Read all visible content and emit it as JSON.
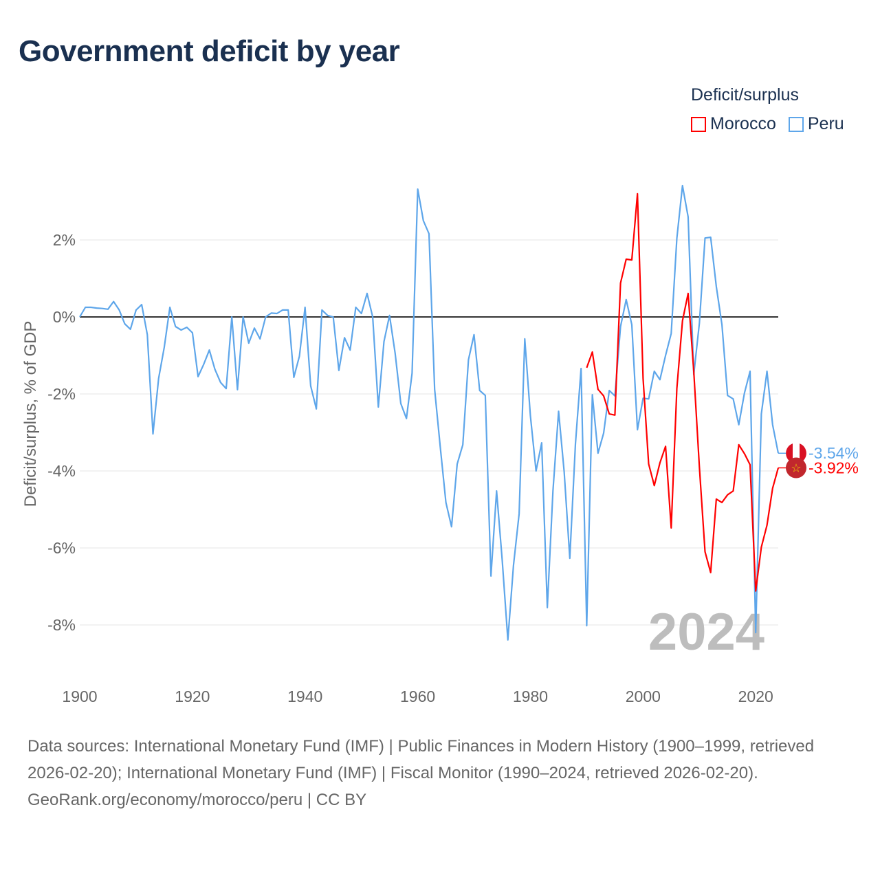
{
  "title": "Government deficit by year",
  "legend": {
    "title": "Deficit/surplus",
    "items": [
      "Morocco",
      "Peru"
    ]
  },
  "footer": {
    "sources": "Data sources: International Monetary Fund (IMF) | Public Finances in Modern History (1900–1999, retrieved 2026-02-20); International Monetary Fund (IMF) | Fiscal Monitor (1990–2024, retrieved 2026-02-20).",
    "credit": "GeoRank.org/economy/morocco/peru | CC BY"
  },
  "chart_data": {
    "type": "line",
    "title": "Government deficit by year",
    "xlabel": "",
    "ylabel": "Deficit/surplus, % of GDP",
    "xlim": [
      1900,
      2024
    ],
    "ylim": [
      -9.2,
      3.9
    ],
    "xticks": [
      1900,
      1920,
      1940,
      1960,
      1980,
      2000,
      2020
    ],
    "yticks": [
      2,
      0,
      -2,
      -4,
      -6,
      -8
    ],
    "ytick_labels": [
      "2%",
      "0%",
      "-2%",
      "-4%",
      "-6%",
      "-8%"
    ],
    "grid": true,
    "legend_position": "top-right",
    "year_annotation": "2024",
    "series": [
      {
        "name": "Peru",
        "color": "#5ea6ea",
        "end_label": "-3.54%",
        "x_start": 1900,
        "values": [
          0,
          0.25,
          0.25,
          0.23,
          0.22,
          0.2,
          0.4,
          0.18,
          -0.18,
          -0.32,
          0.18,
          0.32,
          -0.46,
          -3.04,
          -1.6,
          -0.79,
          0.25,
          -0.25,
          -0.34,
          -0.27,
          -0.41,
          -1.55,
          -1.23,
          -0.86,
          -1.36,
          -1.7,
          -1.86,
          0,
          -1.89,
          0,
          -0.68,
          -0.29,
          -0.57,
          0,
          0.1,
          0.09,
          0.18,
          0.18,
          -1.57,
          -1.02,
          0.25,
          -1.79,
          -2.39,
          0.18,
          0.04,
          0,
          -1.39,
          -0.54,
          -0.86,
          0.25,
          0.09,
          0.61,
          0,
          -2.34,
          -0.64,
          0.04,
          -0.95,
          -2.25,
          -2.64,
          -1.46,
          3.32,
          2.5,
          2.16,
          -1.88,
          -3.38,
          -4.82,
          -5.45,
          -3.82,
          -3.32,
          -1.11,
          -0.46,
          -1.91,
          -2.04,
          -6.73,
          -4.52,
          -6.32,
          -8.39,
          -6.45,
          -5.11,
          -0.57,
          -2.57,
          -4.0,
          -3.27,
          -7.55,
          -4.52,
          -2.45,
          -4.02,
          -6.27,
          -3.3,
          -1.34,
          -8.02,
          -2.02,
          -3.54,
          -3.02,
          -1.91,
          -2.05,
          -0.25,
          0.45,
          -0.2,
          -2.93,
          -2.11,
          -2.13,
          -1.41,
          -1.63,
          -1.0,
          -0.43,
          2.04,
          3.41,
          2.6,
          -1.5,
          -0.16,
          2.05,
          2.07,
          0.79,
          -0.2,
          -2.04,
          -2.13,
          -2.8,
          -1.98,
          -1.41,
          -8.2,
          -2.52,
          -1.41,
          -2.8,
          -3.54
        ]
      },
      {
        "name": "Morocco",
        "color": "#ff0000",
        "end_label": "-3.92%",
        "x_start": 1990,
        "values": [
          -1.32,
          -0.91,
          -1.88,
          -2.05,
          -2.52,
          -2.55,
          0.88,
          1.5,
          1.48,
          3.2,
          -1.6,
          -3.82,
          -4.38,
          -3.79,
          -3.36,
          -5.48,
          -1.86,
          -0.1,
          0.61,
          -1.41,
          -3.9,
          -6.1,
          -6.64,
          -4.73,
          -4.82,
          -4.62,
          -4.52,
          -3.32,
          -3.55,
          -3.84,
          -7.12,
          -5.98,
          -5.41,
          -4.45,
          -3.92
        ]
      }
    ]
  }
}
